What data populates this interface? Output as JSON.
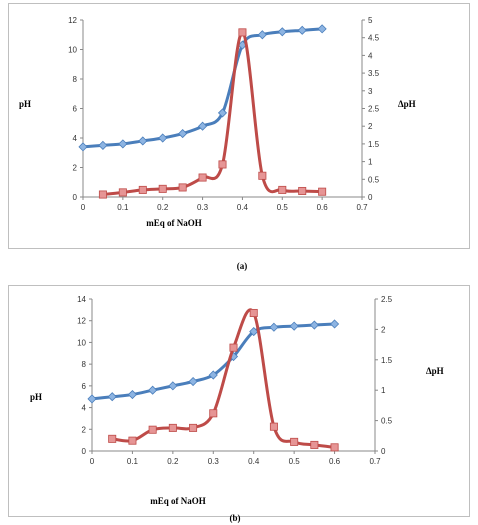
{
  "chart_data": [
    {
      "type": "line",
      "caption": "(a)",
      "xlabel": "mEq of NaOH",
      "ylabel": "pH",
      "y2label": "ΔpH",
      "xlim": [
        0,
        0.7
      ],
      "xticks": [
        0,
        0.1,
        0.2,
        0.3,
        0.4,
        0.5,
        0.6,
        0.7
      ],
      "xtick_labels": [
        "0",
        "0.1",
        "0.2",
        "0.3",
        "0.4",
        "0.5",
        "0.6",
        "0.7"
      ],
      "ylim": [
        0,
        12
      ],
      "yticks": [
        0,
        2,
        4,
        6,
        8,
        10,
        12
      ],
      "y2lim": [
        0,
        5
      ],
      "y2ticks": [
        0,
        0.5,
        1,
        1.5,
        2,
        2.5,
        3,
        3.5,
        4,
        4.5,
        5
      ],
      "grid": false,
      "series": [
        {
          "axis": "left",
          "color": "#4a7ebb",
          "marker": "diamond",
          "x": [
            0,
            0.05,
            0.1,
            0.15,
            0.2,
            0.25,
            0.3,
            0.35,
            0.4,
            0.45,
            0.5,
            0.55,
            0.6
          ],
          "values": [
            3.4,
            3.5,
            3.6,
            3.8,
            4.0,
            4.3,
            4.8,
            5.7,
            10.3,
            11.0,
            11.2,
            11.3,
            11.4
          ]
        },
        {
          "axis": "right",
          "color": "#be4b48",
          "marker": "square",
          "x": [
            0.05,
            0.1,
            0.15,
            0.2,
            0.25,
            0.3,
            0.35,
            0.4,
            0.45,
            0.5,
            0.55,
            0.6
          ],
          "values": [
            0.07,
            0.13,
            0.2,
            0.23,
            0.27,
            0.55,
            0.92,
            4.65,
            0.6,
            0.2,
            0.17,
            0.15
          ]
        }
      ]
    },
    {
      "type": "line",
      "caption": "(b)",
      "xlabel": "mEq of NaOH",
      "ylabel": "pH",
      "y2label": "ΔpH",
      "xlim": [
        0,
        0.7
      ],
      "xticks": [
        0,
        0.1,
        0.2,
        0.3,
        0.4,
        0.5,
        0.6,
        0.7
      ],
      "xtick_labels": [
        "0",
        "0.1",
        "0.2",
        "0.3",
        "0.4",
        "0.5",
        "0.6",
        "0.7"
      ],
      "ylim": [
        0,
        14
      ],
      "yticks": [
        0,
        2,
        4,
        6,
        8,
        10,
        12,
        14
      ],
      "y2lim": [
        0,
        2.5
      ],
      "y2ticks": [
        0,
        0.5,
        1,
        1.5,
        2,
        2.5
      ],
      "grid": false,
      "series": [
        {
          "axis": "left",
          "color": "#4a7ebb",
          "marker": "diamond",
          "x": [
            0,
            0.05,
            0.1,
            0.15,
            0.2,
            0.25,
            0.3,
            0.35,
            0.4,
            0.45,
            0.5,
            0.55,
            0.6
          ],
          "values": [
            4.8,
            5.0,
            5.2,
            5.6,
            6.0,
            6.4,
            7.0,
            8.7,
            11.0,
            11.4,
            11.5,
            11.6,
            11.7
          ]
        },
        {
          "axis": "right",
          "color": "#be4b48",
          "marker": "square",
          "x": [
            0.05,
            0.1,
            0.15,
            0.2,
            0.25,
            0.3,
            0.35,
            0.4,
            0.45,
            0.5,
            0.55,
            0.6
          ],
          "values": [
            0.2,
            0.17,
            0.35,
            0.38,
            0.38,
            0.62,
            1.7,
            2.27,
            0.4,
            0.15,
            0.1,
            0.06
          ]
        }
      ]
    }
  ]
}
